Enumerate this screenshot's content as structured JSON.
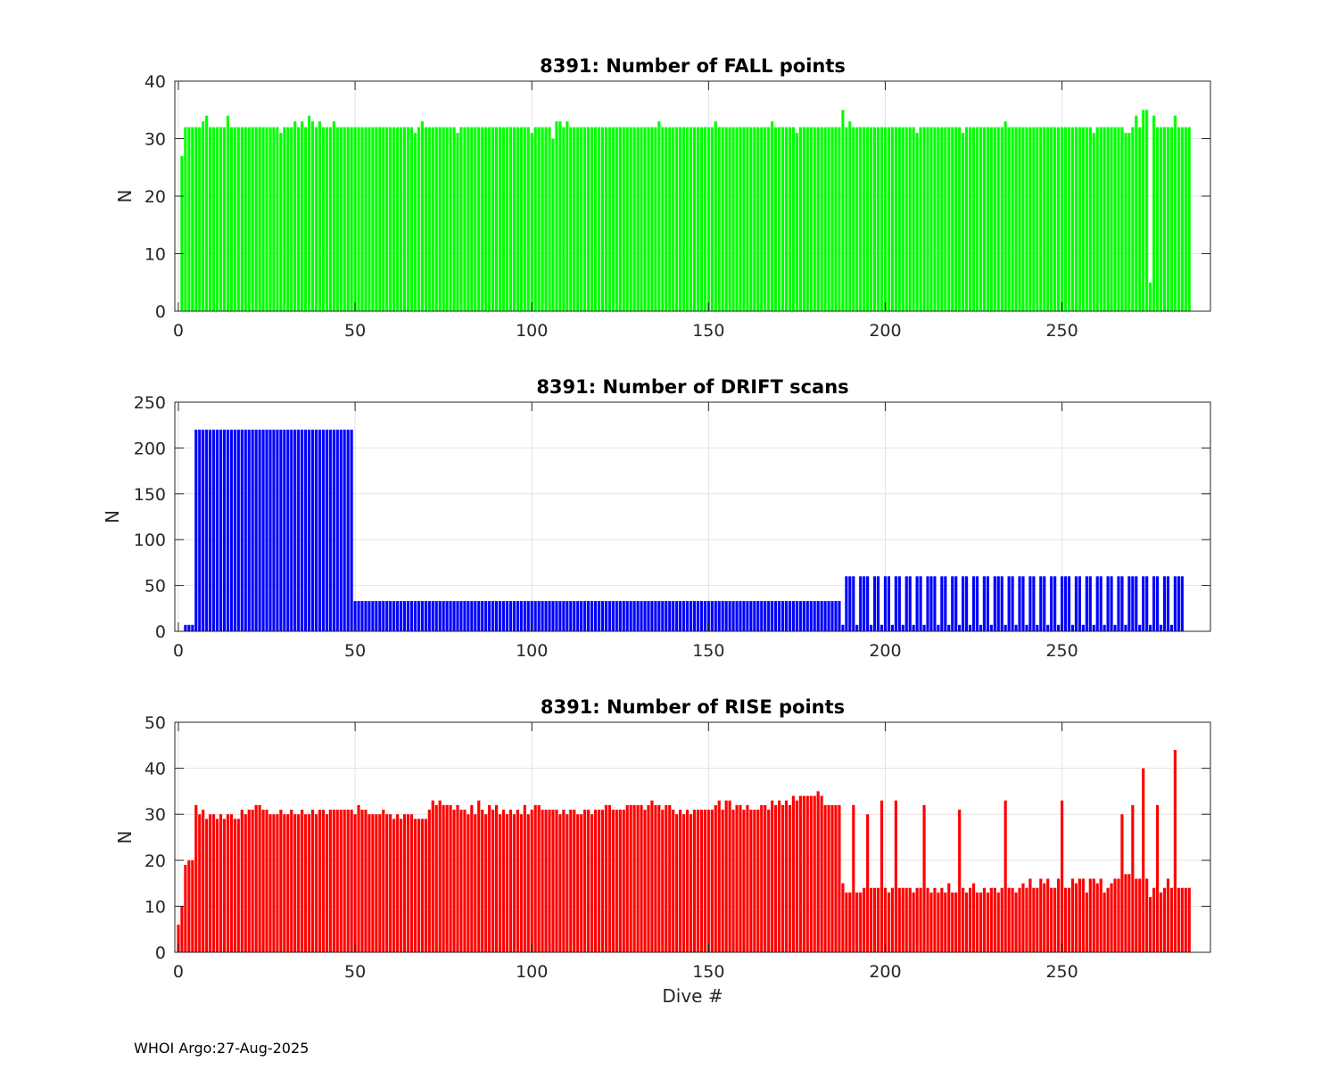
{
  "footer": {
    "text": "WHOI Argo:27-Aug-2025"
  },
  "chart_data": [
    {
      "type": "bar",
      "title": "8391: Number of FALL points",
      "xlabel": "",
      "ylabel": "N",
      "xlim": [
        -1,
        292
      ],
      "ylim": [
        0,
        40
      ],
      "xticks": [
        0,
        50,
        100,
        150,
        200,
        250
      ],
      "yticks": [
        0,
        10,
        20,
        30,
        40
      ],
      "grid": true,
      "color": "#00ff00",
      "x_start": 1,
      "values": [
        27,
        32,
        32,
        32,
        32,
        32,
        33,
        34,
        32,
        32,
        32,
        32,
        32,
        34,
        32,
        32,
        32,
        32,
        32,
        32,
        32,
        32,
        32,
        32,
        32,
        32,
        32,
        32,
        31,
        32,
        32,
        32,
        33,
        32,
        33,
        32,
        34,
        33,
        32,
        33,
        32,
        32,
        32,
        33,
        32,
        32,
        32,
        32,
        32,
        32,
        32,
        32,
        32,
        32,
        32,
        32,
        32,
        32,
        32,
        32,
        32,
        32,
        32,
        32,
        32,
        32,
        31,
        32,
        33,
        32,
        32,
        32,
        32,
        32,
        32,
        32,
        32,
        32,
        31,
        32,
        32,
        32,
        32,
        32,
        32,
        32,
        32,
        32,
        32,
        32,
        32,
        32,
        32,
        32,
        32,
        32,
        32,
        32,
        32,
        31,
        32,
        32,
        32,
        32,
        32,
        30,
        33,
        33,
        32,
        33,
        32,
        32,
        32,
        32,
        32,
        32,
        32,
        32,
        32,
        32,
        32,
        32,
        32,
        32,
        32,
        32,
        32,
        32,
        32,
        32,
        32,
        32,
        32,
        32,
        32,
        33,
        32,
        32,
        32,
        32,
        32,
        32,
        32,
        32,
        32,
        32,
        32,
        32,
        32,
        32,
        32,
        33,
        32,
        32,
        32,
        32,
        32,
        32,
        32,
        32,
        32,
        32,
        32,
        32,
        32,
        32,
        32,
        33,
        32,
        32,
        32,
        32,
        32,
        32,
        31,
        32,
        32,
        32,
        32,
        32,
        32,
        32,
        32,
        32,
        32,
        32,
        32,
        35,
        32,
        33,
        32,
        32,
        32,
        32,
        32,
        32,
        32,
        32,
        32,
        32,
        32,
        32,
        32,
        32,
        32,
        32,
        32,
        32,
        31,
        32,
        32,
        32,
        32,
        32,
        32,
        32,
        32,
        32,
        32,
        32,
        32,
        31,
        32,
        32,
        32,
        32,
        32,
        32,
        32,
        32,
        32,
        32,
        32,
        33,
        32,
        32,
        32,
        32,
        32,
        32,
        32,
        32,
        32,
        32,
        32,
        32,
        32,
        32,
        32,
        32,
        32,
        32,
        32,
        32,
        32,
        32,
        32,
        32,
        31,
        32,
        32,
        32,
        32,
        32,
        32,
        32,
        32,
        31,
        31,
        32,
        34,
        32,
        35,
        35,
        5,
        34,
        32,
        32,
        32,
        32,
        32,
        34,
        32,
        32,
        32,
        32
      ]
    },
    {
      "type": "bar",
      "title": "8391: Number of DRIFT scans",
      "xlabel": "",
      "ylabel": "N",
      "xlim": [
        -1,
        292
      ],
      "ylim": [
        0,
        250
      ],
      "xticks": [
        0,
        50,
        100,
        150,
        200,
        250
      ],
      "yticks": [
        0,
        50,
        100,
        150,
        200,
        250
      ],
      "grid": true,
      "color": "#0000ff",
      "x_start": 1,
      "values": [
        0,
        7,
        7,
        7,
        220,
        220,
        220,
        220,
        220,
        220,
        220,
        220,
        220,
        220,
        220,
        220,
        220,
        220,
        220,
        220,
        220,
        220,
        220,
        220,
        220,
        220,
        220,
        220,
        220,
        220,
        220,
        220,
        220,
        220,
        220,
        220,
        220,
        220,
        220,
        220,
        220,
        220,
        220,
        220,
        220,
        220,
        220,
        220,
        220,
        33,
        33,
        33,
        33,
        33,
        33,
        33,
        33,
        33,
        33,
        33,
        33,
        33,
        33,
        33,
        33,
        33,
        33,
        33,
        33,
        33,
        33,
        33,
        33,
        33,
        33,
        33,
        33,
        33,
        33,
        33,
        33,
        33,
        33,
        33,
        33,
        33,
        33,
        33,
        33,
        33,
        33,
        33,
        33,
        33,
        33,
        33,
        33,
        33,
        33,
        33,
        33,
        33,
        33,
        33,
        33,
        33,
        33,
        33,
        33,
        33,
        33,
        33,
        33,
        33,
        33,
        33,
        33,
        33,
        33,
        33,
        33,
        33,
        33,
        33,
        33,
        33,
        33,
        33,
        33,
        33,
        33,
        33,
        33,
        33,
        33,
        33,
        33,
        33,
        33,
        33,
        33,
        33,
        33,
        33,
        33,
        33,
        33,
        33,
        33,
        33,
        33,
        33,
        33,
        33,
        33,
        33,
        33,
        33,
        33,
        33,
        33,
        33,
        33,
        33,
        33,
        33,
        33,
        33,
        33,
        33,
        33,
        33,
        33,
        33,
        33,
        33,
        33,
        33,
        33,
        33,
        33,
        33,
        33,
        33,
        33,
        33,
        33,
        7,
        60,
        60,
        60,
        7,
        60,
        60,
        60,
        7,
        60,
        60,
        7,
        60,
        60,
        7,
        60,
        60,
        7,
        60,
        60,
        7,
        60,
        60,
        7,
        60,
        60,
        60,
        7,
        60,
        60,
        7,
        60,
        60,
        7,
        60,
        60,
        7,
        60,
        60,
        7,
        60,
        60,
        7,
        60,
        60,
        60,
        7,
        60,
        60,
        7,
        60,
        60,
        7,
        60,
        60,
        7,
        60,
        60,
        7,
        60,
        60,
        7,
        60,
        60,
        60,
        7,
        60,
        60,
        7,
        60,
        60,
        7,
        60,
        60,
        7,
        60,
        60,
        7,
        60,
        60,
        7,
        60,
        60,
        60,
        7,
        60,
        60,
        7,
        60,
        60,
        7,
        60,
        60,
        7,
        60,
        60,
        60
      ]
    },
    {
      "type": "bar",
      "title": "8391: Number of RISE points",
      "xlabel": "Dive #",
      "ylabel": "N",
      "xlim": [
        -1,
        292
      ],
      "ylim": [
        0,
        50
      ],
      "xticks": [
        0,
        50,
        100,
        150,
        200,
        250
      ],
      "yticks": [
        0,
        10,
        20,
        30,
        40,
        50
      ],
      "grid": true,
      "color": "#ff0000",
      "x_start": 0,
      "values": [
        6,
        10,
        19,
        20,
        20,
        32,
        30,
        31,
        29,
        30,
        30,
        29,
        30,
        29,
        30,
        30,
        29,
        29,
        31,
        30,
        31,
        31,
        32,
        32,
        31,
        31,
        30,
        30,
        30,
        31,
        30,
        30,
        31,
        30,
        30,
        31,
        30,
        30,
        31,
        30,
        31,
        31,
        30,
        31,
        31,
        31,
        31,
        31,
        31,
        31,
        30,
        32,
        31,
        31,
        30,
        30,
        30,
        30,
        31,
        30,
        30,
        29,
        30,
        29,
        30,
        30,
        30,
        29,
        29,
        29,
        29,
        31,
        33,
        32,
        33,
        32,
        32,
        32,
        31,
        32,
        31,
        31,
        30,
        32,
        30,
        33,
        31,
        30,
        32,
        31,
        32,
        30,
        31,
        30,
        31,
        30,
        31,
        30,
        32,
        30,
        31,
        32,
        32,
        31,
        31,
        31,
        31,
        31,
        30,
        31,
        30,
        31,
        31,
        30,
        30,
        31,
        31,
        30,
        31,
        31,
        31,
        32,
        32,
        31,
        31,
        31,
        31,
        32,
        32,
        32,
        32,
        32,
        31,
        32,
        33,
        32,
        32,
        31,
        32,
        32,
        31,
        30,
        31,
        30,
        31,
        30,
        31,
        31,
        31,
        31,
        31,
        31,
        32,
        33,
        31,
        33,
        33,
        31,
        32,
        32,
        31,
        32,
        31,
        31,
        31,
        32,
        32,
        31,
        33,
        32,
        33,
        32,
        33,
        32,
        34,
        33,
        34,
        34,
        34,
        34,
        34,
        35,
        34,
        32,
        32,
        32,
        32,
        32,
        15,
        13,
        13,
        32,
        13,
        13,
        14,
        30,
        14,
        14,
        14,
        33,
        14,
        13,
        14,
        33,
        14,
        14,
        14,
        14,
        13,
        14,
        14,
        32,
        14,
        13,
        14,
        13,
        14,
        13,
        15,
        13,
        13,
        31,
        14,
        13,
        14,
        15,
        13,
        13,
        14,
        13,
        14,
        14,
        13,
        14,
        33,
        14,
        14,
        13,
        14,
        15,
        14,
        16,
        14,
        14,
        16,
        15,
        16,
        14,
        14,
        16,
        33,
        14,
        14,
        16,
        15,
        16,
        16,
        13,
        16,
        16,
        15,
        16,
        13,
        14,
        15,
        16,
        16,
        30,
        17,
        17,
        32,
        16,
        16,
        40,
        16,
        12,
        14,
        32,
        13,
        14,
        16,
        14,
        44,
        14,
        14,
        14,
        14
      ]
    }
  ]
}
